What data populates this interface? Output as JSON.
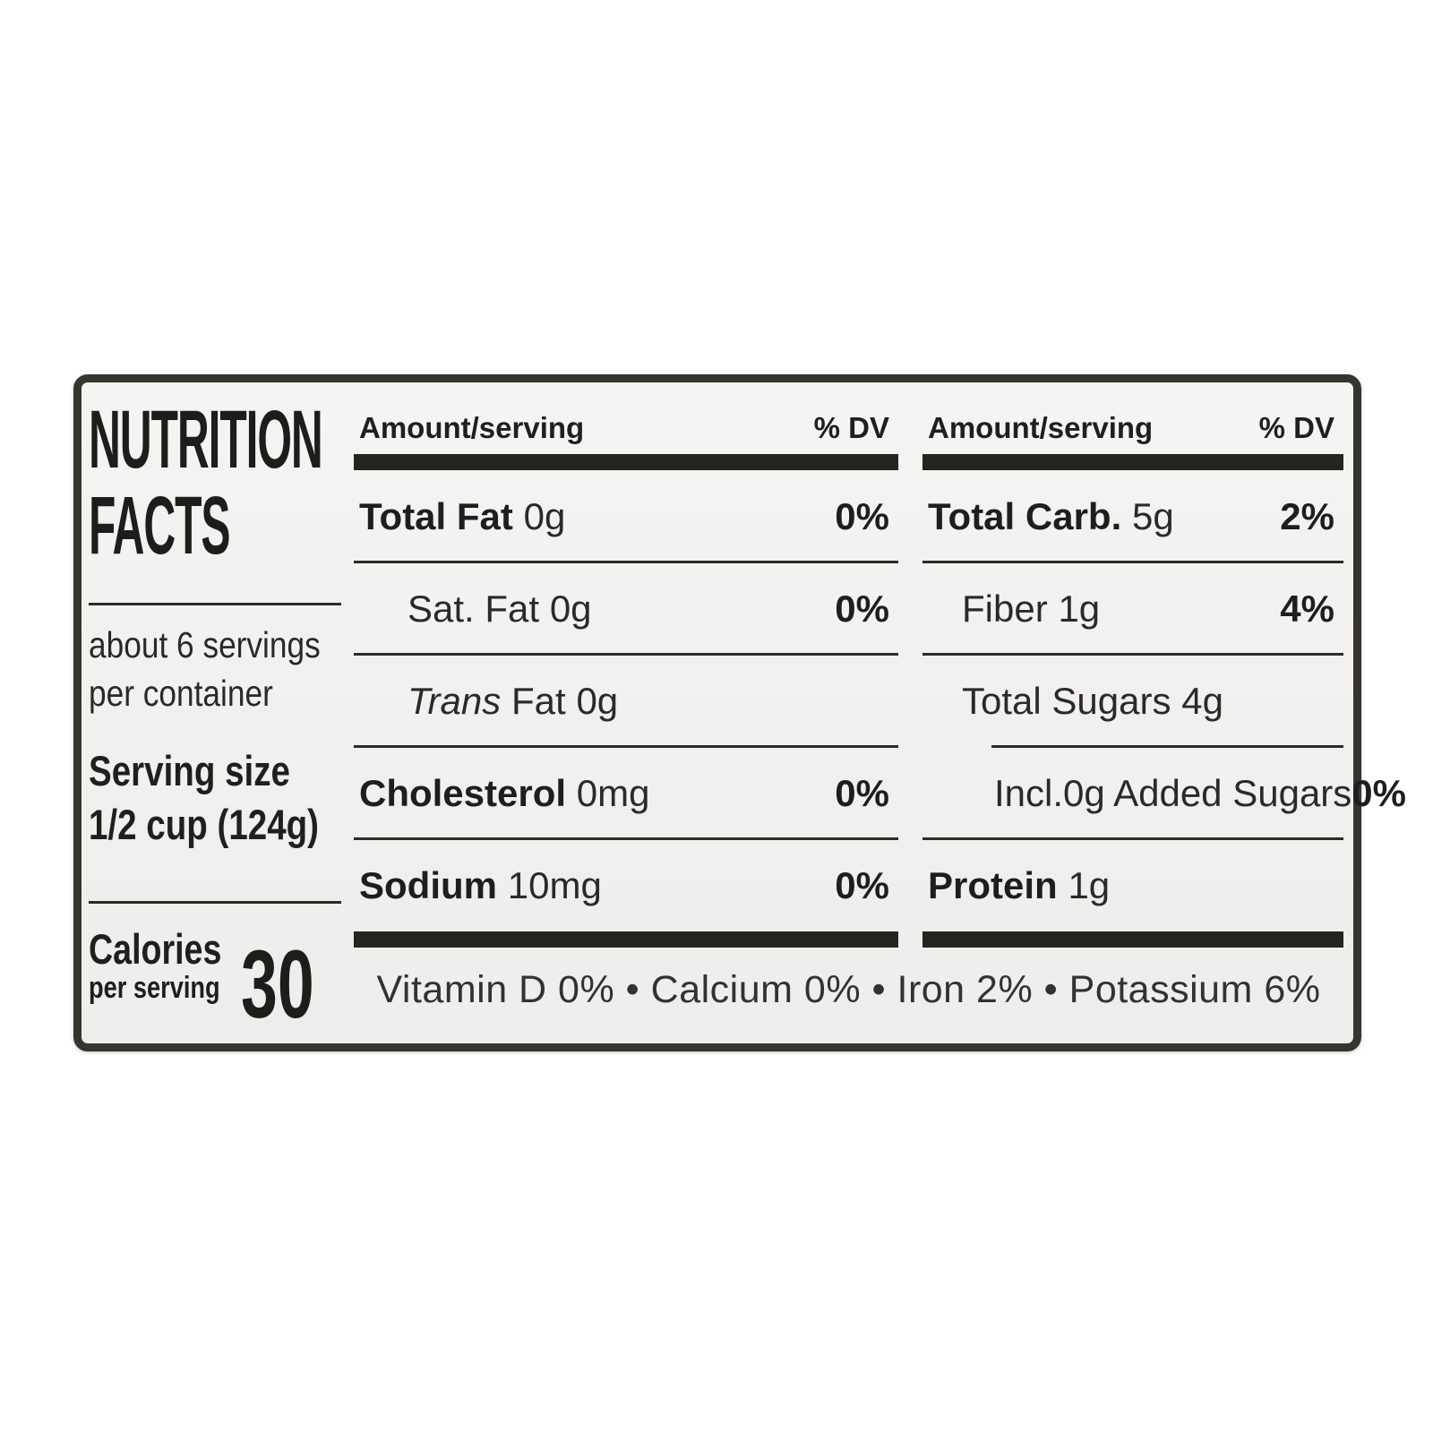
{
  "label": {
    "title_line1": "NUTRITION",
    "title_line2": "FACTS",
    "servings_line1": "about 6 servings",
    "servings_line2": "per container",
    "serving_size_line1": "Serving size",
    "serving_size_line2": "1/2 cup (124g)",
    "calories_label": "Calories",
    "calories_sub": "per serving",
    "calories_value": "30",
    "col1": {
      "header_amount": "Amount/serving",
      "header_dv": "% DV",
      "rows": [
        {
          "name": "Total Fat",
          "amount": "0g",
          "dv": "0%"
        },
        {
          "name": "Sat. Fat",
          "amount": "0g",
          "dv": "0%"
        },
        {
          "name_italic": "Trans",
          "name_rest": "Fat",
          "amount": "0g",
          "dv": ""
        },
        {
          "name": "Cholesterol",
          "amount": "0mg",
          "dv": "0%"
        },
        {
          "name": "Sodium",
          "amount": "10mg",
          "dv": "0%"
        }
      ]
    },
    "col2": {
      "header_amount": "Amount/serving",
      "header_dv": "% DV",
      "rows": [
        {
          "name": "Total Carb.",
          "amount": "5g",
          "dv": "2%"
        },
        {
          "name": "Fiber",
          "amount": "1g",
          "dv": "4%"
        },
        {
          "name": "Total Sugars",
          "amount": "4g",
          "dv": ""
        },
        {
          "name": "Incl.0g Added Sugars",
          "amount": "",
          "dv": "0%"
        },
        {
          "name": "Protein",
          "amount": "1g",
          "dv": ""
        }
      ]
    },
    "vitamins": "Vitamin D 0% • Calcium 0% • Iron 2% • Potassium 6%"
  }
}
